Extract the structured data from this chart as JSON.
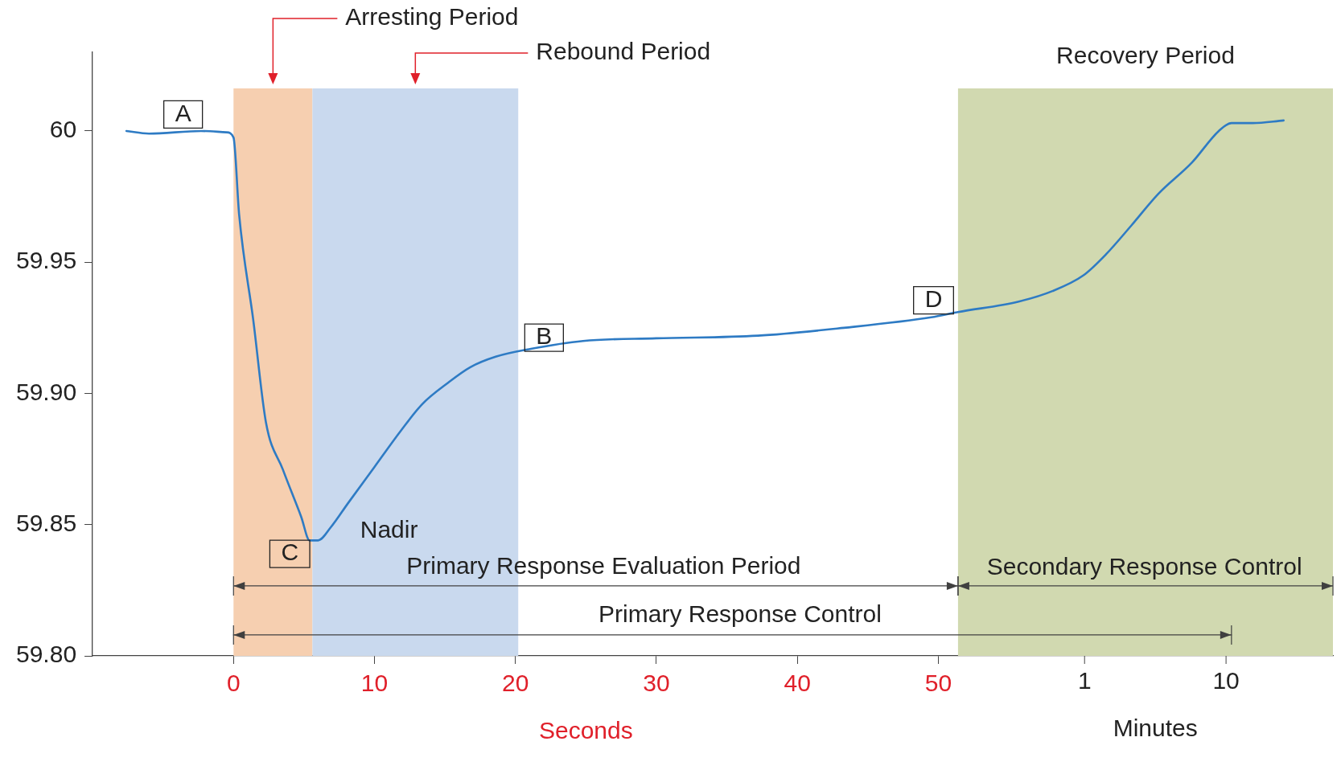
{
  "chart_data": {
    "type": "line",
    "xlabel": "Seconds",
    "x2label": "Minutes",
    "xlim": [
      -10,
      78
    ],
    "xticks": [
      0,
      10,
      20,
      30,
      40,
      50
    ],
    "x2lim": [
      -62.1,
      16.8
    ],
    "x2ticks": [
      1,
      10
    ],
    "ylim": [
      59.8,
      60.03
    ],
    "yticks": [
      {
        "value": 59.8,
        "label": "59.80"
      },
      59.85,
      {
        "value": 59.9,
        "label": "59.90"
      },
      59.95,
      60
    ],
    "grid": false,
    "legend": false,
    "marker": "none",
    "line_style": "solid",
    "series": [
      {
        "color": "#2e7bc4",
        "x": [
          -7.6,
          -6.0,
          -2.3,
          -0.5,
          0,
          0.4,
          1.4,
          2.3,
          3.5,
          4.8,
          5.4,
          6.0,
          6.9,
          8.1,
          10,
          11.9,
          13.4,
          15.2,
          16.8,
          18.6,
          21.1,
          24.8,
          30,
          37.2,
          43.3,
          49.5,
          51.4,
          55.7,
          58.1,
          60.3,
          61.9,
          63.7,
          65.6,
          68,
          69.9,
          70.8,
          72.3,
          74.5
        ],
        "values": [
          60.0,
          59.999,
          60.0,
          59.9995,
          59.9975,
          59.968,
          59.928,
          59.889,
          59.871,
          59.853,
          59.844,
          59.844,
          59.849,
          59.858,
          59.872,
          59.886,
          59.896,
          59.904,
          59.91,
          59.914,
          59.917,
          59.92,
          59.921,
          59.922,
          59.925,
          59.929,
          59.931,
          59.935,
          59.939,
          59.945,
          59.953,
          59.964,
          59.976,
          59.988,
          60.0,
          60.003,
          60.003,
          60.004
        ]
      },
      {
        "type": "line",
        "color": "#404040",
        "x": [
          0,
          70.8
        ],
        "values": [
          59.808,
          59.808
        ]
      }
    ],
    "bands": [
      {
        "axis": "x",
        "from": 0,
        "to": 5.6,
        "label": "Arresting Period",
        "color": "#f6cfb0"
      },
      {
        "axis": "x",
        "from": 5.6,
        "to": 20.2,
        "label": "Rebound Period",
        "color": "#c9d9ee"
      },
      {
        "axis": "x",
        "from": 51.4,
        "to": 78,
        "label": "Recovery Period",
        "color": "#d1d9b0"
      }
    ],
    "annotations": [
      "A",
      "B",
      "C",
      "D",
      "Nadir",
      "Primary Response Evaluation Period",
      "Secondary Response Control",
      "Primary Response Control"
    ]
  }
}
